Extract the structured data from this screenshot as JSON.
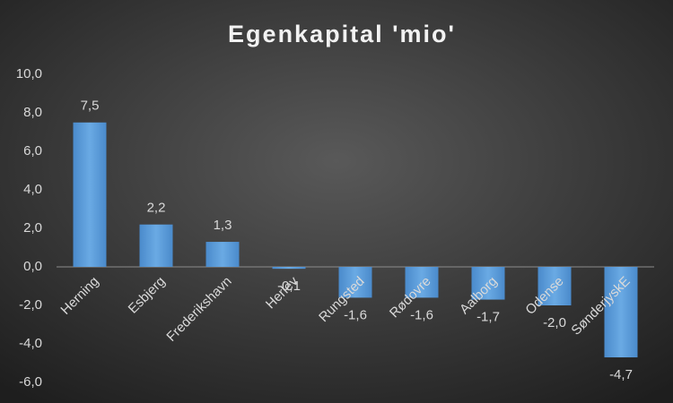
{
  "chart_data": {
    "type": "bar",
    "title": "Egenkapital 'mio'",
    "categories": [
      "Herning",
      "Esbjerg",
      "Frederikshavn",
      "Herlev",
      "Rungsted",
      "Rødovre",
      "Aalborg",
      "Odense",
      "SønderjyskE"
    ],
    "values": [
      7.5,
      2.2,
      1.3,
      -0.1,
      -1.6,
      -1.6,
      -1.7,
      -2.0,
      -4.7
    ],
    "value_labels": [
      "7,5",
      "2,2",
      "1,3",
      "-0,1",
      "-1,6",
      "-1,6",
      "-1,7",
      "-2,0",
      "-4,7"
    ],
    "color": "#5b9bd5",
    "ylim": [
      -6,
      10
    ],
    "yticks": [
      {
        "value": -6,
        "label": "-6,0"
      },
      {
        "value": -4,
        "label": "-4,0"
      },
      {
        "value": -2,
        "label": "-2,0"
      },
      {
        "value": 0,
        "label": "0,0"
      },
      {
        "value": 2,
        "label": "2,0"
      },
      {
        "value": 4,
        "label": "4,0"
      },
      {
        "value": 6,
        "label": "6,0"
      },
      {
        "value": 8,
        "label": "8,0"
      },
      {
        "value": 10,
        "label": "10,0"
      }
    ],
    "grid": false
  }
}
